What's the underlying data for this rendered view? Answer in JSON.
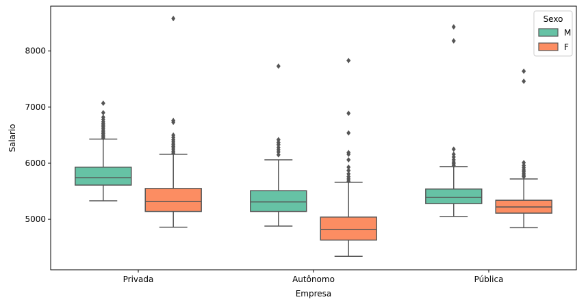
{
  "chart_data": {
    "type": "boxplot",
    "title": "",
    "xlabel": "Empresa",
    "ylabel": "Salario",
    "ylim": [
      4100,
      8800
    ],
    "yticks": [
      5000,
      6000,
      7000,
      8000
    ],
    "grid": false,
    "categories": [
      "Privada",
      "Autônomo",
      "Pública"
    ],
    "legend": {
      "title": "Sexo",
      "position": "top-right",
      "entries": [
        {
          "name": "M",
          "color": "#66c2a5"
        },
        {
          "name": "F",
          "color": "#fc8d62"
        }
      ]
    },
    "series": [
      {
        "name": "M",
        "color": "#66c2a5",
        "boxes": [
          {
            "category": "Privada",
            "whisker_low": 5330,
            "q1": 5610,
            "median": 5740,
            "q3": 5930,
            "whisker_high": 6430,
            "outliers": [
              6450,
              6480,
              6500,
              6530,
              6560,
              6590,
              6620,
              6650,
              6680,
              6710,
              6740,
              6780,
              6820,
              6900,
              7070
            ]
          },
          {
            "category": "Autônomo",
            "whisker_low": 4880,
            "q1": 5140,
            "median": 5310,
            "q3": 5510,
            "whisker_high": 6060,
            "outliers": [
              6150,
              6200,
              6240,
              6280,
              6330,
              6370,
              6420,
              7730
            ]
          },
          {
            "category": "Pública",
            "whisker_low": 5050,
            "q1": 5280,
            "median": 5390,
            "q3": 5540,
            "whisker_high": 5940,
            "outliers": [
              5960,
              5990,
              6020,
              6060,
              6110,
              6160,
              6250,
              8180,
              8430
            ]
          }
        ]
      },
      {
        "name": "F",
        "color": "#fc8d62",
        "boxes": [
          {
            "category": "Privada",
            "whisker_low": 4860,
            "q1": 5140,
            "median": 5320,
            "q3": 5550,
            "whisker_high": 6160,
            "outliers": [
              6180,
              6210,
              6240,
              6270,
              6300,
              6330,
              6360,
              6390,
              6420,
              6460,
              6500,
              6730,
              6760,
              8580
            ]
          },
          {
            "category": "Autônomo",
            "whisker_low": 4340,
            "q1": 4630,
            "median": 4820,
            "q3": 5040,
            "whisker_high": 5660,
            "outliers": [
              5680,
              5720,
              5760,
              5810,
              5870,
              5930,
              6060,
              6160,
              6190,
              6540,
              6890,
              7830
            ]
          },
          {
            "category": "Pública",
            "whisker_low": 4850,
            "q1": 5110,
            "median": 5220,
            "q3": 5340,
            "whisker_high": 5720,
            "outliers": [
              5760,
              5790,
              5820,
              5850,
              5880,
              5920,
              5960,
              6010,
              7460,
              7640
            ]
          }
        ]
      }
    ]
  }
}
